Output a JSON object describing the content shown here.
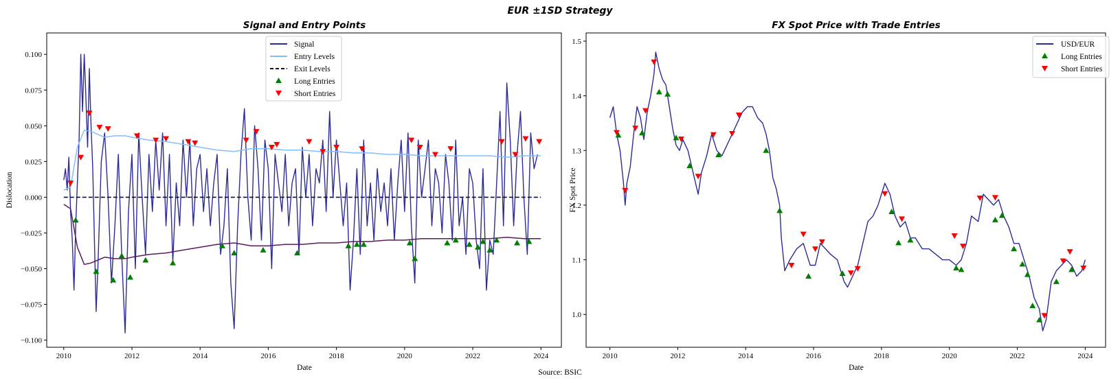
{
  "suptitle": "EUR ±1SD Strategy",
  "source": "Source: BSIC",
  "chart_data": [
    {
      "type": "line",
      "title": "Signal and Entry Points",
      "xlabel": "Date",
      "ylabel": "Dislocation",
      "xlim": [
        2009.5,
        2024.6
      ],
      "ylim": [
        -0.105,
        0.115
      ],
      "x_ticks": [
        2010,
        2012,
        2014,
        2016,
        2018,
        2020,
        2022,
        2024
      ],
      "y_ticks": [
        -0.1,
        -0.075,
        -0.05,
        -0.025,
        0.0,
        0.025,
        0.05,
        0.075,
        0.1
      ],
      "y_tick_labels": [
        "−0.100",
        "−0.075",
        "−0.050",
        "−0.025",
        "0.000",
        "0.025",
        "0.050",
        "0.075",
        "0.100"
      ],
      "grid": false,
      "legend_position": "top-center",
      "legend": [
        "Signal",
        "Entry Levels",
        "Exit Levels",
        "Long Entries",
        "Short Entries"
      ],
      "colors": {
        "signal": "#2b2b96",
        "entry_upper": "#7fbfff",
        "entry_lower": "#5c1a5c",
        "exit": "#0b0b4b",
        "long": "#008000",
        "short": "#ff0000"
      },
      "series": [
        {
          "name": "Signal",
          "x": [
            2010.0,
            2010.05,
            2010.1,
            2010.15,
            2010.2,
            2010.25,
            2010.3,
            2010.35,
            2010.4,
            2010.45,
            2010.5,
            2010.55,
            2010.6,
            2010.65,
            2010.7,
            2010.75,
            2010.8,
            2010.85,
            2010.9,
            2010.95,
            2011.0,
            2011.1,
            2011.2,
            2011.3,
            2011.4,
            2011.5,
            2011.6,
            2011.7,
            2011.8,
            2011.9,
            2012.0,
            2012.1,
            2012.2,
            2012.3,
            2012.4,
            2012.5,
            2012.6,
            2012.7,
            2012.8,
            2012.9,
            2013.0,
            2013.1,
            2013.2,
            2013.3,
            2013.4,
            2013.5,
            2013.6,
            2013.7,
            2013.8,
            2013.9,
            2014.0,
            2014.1,
            2014.2,
            2014.3,
            2014.4,
            2014.5,
            2014.6,
            2014.7,
            2014.8,
            2014.9,
            2015.0,
            2015.1,
            2015.2,
            2015.3,
            2015.4,
            2015.5,
            2015.6,
            2015.7,
            2015.8,
            2015.9,
            2016.0,
            2016.1,
            2016.2,
            2016.3,
            2016.4,
            2016.5,
            2016.6,
            2016.7,
            2016.8,
            2016.9,
            2017.0,
            2017.1,
            2017.2,
            2017.3,
            2017.4,
            2017.5,
            2017.6,
            2017.7,
            2017.8,
            2017.9,
            2018.0,
            2018.1,
            2018.2,
            2018.3,
            2018.4,
            2018.5,
            2018.6,
            2018.7,
            2018.8,
            2018.9,
            2019.0,
            2019.1,
            2019.2,
            2019.3,
            2019.4,
            2019.5,
            2019.6,
            2019.7,
            2019.8,
            2019.9,
            2020.0,
            2020.1,
            2020.2,
            2020.3,
            2020.4,
            2020.5,
            2020.6,
            2020.7,
            2020.8,
            2020.9,
            2021.0,
            2021.1,
            2021.2,
            2021.3,
            2021.4,
            2021.5,
            2021.6,
            2021.7,
            2021.8,
            2021.9,
            2022.0,
            2022.1,
            2022.2,
            2022.3,
            2022.4,
            2022.5,
            2022.6,
            2022.7,
            2022.8,
            2022.9,
            2023.0,
            2023.1,
            2023.2,
            2023.3,
            2023.4,
            2023.5,
            2023.6,
            2023.7,
            2023.8,
            2023.9
          ],
          "values": [
            0.012,
            0.02,
            0.005,
            0.028,
            -0.01,
            -0.03,
            -0.065,
            -0.02,
            0.01,
            0.04,
            0.1,
            0.06,
            0.1,
            0.07,
            0.035,
            0.09,
            0.05,
            0.02,
            -0.03,
            -0.08,
            -0.05,
            0.025,
            0.045,
            0.0,
            -0.06,
            -0.02,
            0.03,
            -0.04,
            -0.095,
            -0.01,
            0.03,
            -0.05,
            0.045,
            0.0,
            -0.04,
            0.03,
            -0.01,
            0.04,
            0.005,
            0.045,
            -0.02,
            0.03,
            -0.045,
            0.01,
            -0.02,
            0.04,
            0.0,
            0.04,
            -0.02,
            0.02,
            0.03,
            -0.01,
            0.02,
            -0.02,
            0.01,
            0.03,
            -0.04,
            -0.02,
            0.02,
            -0.06,
            -0.092,
            -0.02,
            0.03,
            0.062,
            0.0,
            -0.03,
            0.05,
            0.02,
            -0.03,
            0.04,
            0.02,
            -0.05,
            0.03,
            0.01,
            -0.01,
            0.03,
            -0.02,
            0.01,
            0.02,
            -0.04,
            0.035,
            0.0,
            0.03,
            -0.02,
            0.02,
            0.01,
            0.04,
            -0.01,
            0.06,
            0.0,
            0.04,
            0.01,
            -0.02,
            0.01,
            -0.065,
            -0.03,
            0.02,
            -0.04,
            0.04,
            -0.02,
            0.01,
            -0.03,
            0.02,
            -0.01,
            0.01,
            -0.02,
            0.02,
            -0.03,
            0.01,
            0.04,
            -0.01,
            0.045,
            -0.02,
            -0.06,
            0.04,
            0.0,
            0.02,
            0.04,
            -0.02,
            0.02,
            0.01,
            -0.025,
            0.03,
            0.01,
            -0.03,
            0.04,
            -0.02,
            0.0,
            -0.04,
            0.02,
            0.01,
            -0.03,
            -0.05,
            0.02,
            -0.065,
            -0.03,
            -0.04,
            0.01,
            0.06,
            -0.02,
            0.08,
            0.04,
            -0.02,
            0.03,
            0.06,
            0.0,
            -0.04,
            0.045,
            0.02,
            0.03
          ]
        },
        {
          "name": "Entry Levels",
          "x": [
            2010.0,
            2010.2,
            2010.4,
            2010.6,
            2010.8,
            2011.0,
            2011.2,
            2011.5,
            2011.8,
            2012.0,
            2012.5,
            2013.0,
            2013.5,
            2014.0,
            2014.5,
            2015.0,
            2015.5,
            2016.0,
            2016.5,
            2017.0,
            2017.5,
            2018.0,
            2018.5,
            2019.0,
            2019.5,
            2020.0,
            2020.5,
            2021.0,
            2021.5,
            2022.0,
            2022.5,
            2023.0,
            2023.5,
            2024.0
          ],
          "values": [
            0.005,
            0.007,
            0.035,
            0.047,
            0.046,
            0.044,
            0.042,
            0.043,
            0.043,
            0.042,
            0.04,
            0.039,
            0.037,
            0.035,
            0.033,
            0.032,
            0.034,
            0.034,
            0.033,
            0.033,
            0.032,
            0.032,
            0.031,
            0.031,
            0.03,
            0.03,
            0.029,
            0.029,
            0.029,
            0.029,
            0.029,
            0.028,
            0.029,
            0.029
          ]
        },
        {
          "name": "",
          "x": [
            2010.0,
            2010.2,
            2010.4,
            2010.6,
            2010.8,
            2011.0,
            2011.2,
            2011.5,
            2011.8,
            2012.0,
            2012.5,
            2013.0,
            2013.5,
            2014.0,
            2014.5,
            2015.0,
            2015.5,
            2016.0,
            2016.5,
            2017.0,
            2017.5,
            2018.0,
            2018.5,
            2019.0,
            2019.5,
            2020.0,
            2020.5,
            2021.0,
            2021.5,
            2022.0,
            2022.5,
            2023.0,
            2023.5,
            2024.0
          ],
          "values": [
            -0.005,
            -0.008,
            -0.035,
            -0.047,
            -0.046,
            -0.044,
            -0.042,
            -0.043,
            -0.043,
            -0.042,
            -0.04,
            -0.039,
            -0.037,
            -0.035,
            -0.033,
            -0.032,
            -0.034,
            -0.034,
            -0.033,
            -0.033,
            -0.032,
            -0.032,
            -0.031,
            -0.031,
            -0.03,
            -0.03,
            -0.029,
            -0.029,
            -0.029,
            -0.029,
            -0.029,
            -0.028,
            -0.029,
            -0.029
          ]
        },
        {
          "name": "Exit Levels",
          "x": [
            2010.0,
            2024.0
          ],
          "values": [
            0.0,
            0.0
          ]
        }
      ],
      "long_entries": {
        "x": [
          2010.35,
          2010.95,
          2011.45,
          2011.7,
          2011.95,
          2012.4,
          2013.2,
          2014.65,
          2015.0,
          2015.85,
          2016.85,
          2018.35,
          2018.6,
          2018.8,
          2020.15,
          2020.3,
          2021.25,
          2021.5,
          2021.9,
          2022.15,
          2022.3,
          2022.5,
          2022.7,
          2023.3,
          2023.65
        ],
        "values": [
          -0.016,
          -0.052,
          -0.058,
          -0.041,
          -0.056,
          -0.044,
          -0.046,
          -0.034,
          -0.039,
          -0.037,
          -0.039,
          -0.034,
          -0.033,
          -0.033,
          -0.032,
          -0.043,
          -0.032,
          -0.03,
          -0.033,
          -0.035,
          -0.031,
          -0.037,
          -0.03,
          -0.032,
          -0.031
        ]
      },
      "short_entries": {
        "x": [
          2010.2,
          2010.5,
          2010.75,
          2011.05,
          2011.3,
          2012.15,
          2012.7,
          2013.0,
          2013.65,
          2013.85,
          2015.35,
          2015.65,
          2016.1,
          2016.25,
          2017.2,
          2017.6,
          2018.0,
          2018.75,
          2020.2,
          2020.45,
          2020.9,
          2021.35,
          2022.85,
          2023.25,
          2023.55,
          2023.95
        ],
        "values": [
          0.01,
          0.028,
          0.059,
          0.049,
          0.048,
          0.043,
          0.04,
          0.041,
          0.039,
          0.038,
          0.04,
          0.046,
          0.035,
          0.037,
          0.039,
          0.032,
          0.035,
          0.034,
          0.04,
          0.035,
          0.03,
          0.034,
          0.039,
          0.03,
          0.041,
          0.039
        ]
      }
    },
    {
      "type": "line",
      "title": "FX Spot Price with Trade Entries",
      "xlabel": "Date",
      "ylabel": "FX Spot Price",
      "xlim": [
        2009.3,
        2024.6
      ],
      "ylim": [
        0.94,
        1.515
      ],
      "x_ticks": [
        2010,
        2012,
        2014,
        2016,
        2018,
        2020,
        2022,
        2024
      ],
      "y_ticks": [
        1.0,
        1.1,
        1.2,
        1.3,
        1.4,
        1.5
      ],
      "y_tick_labels": [
        "1.0",
        "1.1",
        "1.2",
        "1.3",
        "1.4",
        "1.5"
      ],
      "grid": false,
      "legend_position": "top-right",
      "legend": [
        "USD/EUR",
        "Long Entries",
        "Short Entries"
      ],
      "colors": {
        "price": "#2b2b96",
        "long": "#008000",
        "short": "#ff0000"
      },
      "series": [
        {
          "name": "USD/EUR",
          "x": [
            2010.0,
            2010.1,
            2010.2,
            2010.3,
            2010.4,
            2010.45,
            2010.5,
            2010.6,
            2010.7,
            2010.8,
            2010.9,
            2011.0,
            2011.1,
            2011.2,
            2011.3,
            2011.35,
            2011.45,
            2011.55,
            2011.65,
            2011.75,
            2011.85,
            2011.95,
            2012.05,
            2012.15,
            2012.3,
            2012.45,
            2012.6,
            2012.7,
            2012.85,
            2013.0,
            2013.15,
            2013.3,
            2013.45,
            2013.6,
            2013.75,
            2013.9,
            2014.05,
            2014.2,
            2014.35,
            2014.5,
            2014.6,
            2014.7,
            2014.8,
            2014.9,
            2015.0,
            2015.05,
            2015.15,
            2015.3,
            2015.5,
            2015.7,
            2015.9,
            2016.05,
            2016.2,
            2016.35,
            2016.5,
            2016.7,
            2016.9,
            2017.0,
            2017.15,
            2017.3,
            2017.45,
            2017.6,
            2017.75,
            2017.9,
            2018.1,
            2018.25,
            2018.4,
            2018.55,
            2018.7,
            2018.85,
            2019.0,
            2019.2,
            2019.4,
            2019.6,
            2019.8,
            2020.0,
            2020.2,
            2020.35,
            2020.5,
            2020.65,
            2020.85,
            2021.0,
            2021.15,
            2021.3,
            2021.45,
            2021.6,
            2021.75,
            2021.9,
            2022.05,
            2022.2,
            2022.35,
            2022.5,
            2022.65,
            2022.75,
            2022.85,
            2023.0,
            2023.15,
            2023.3,
            2023.45,
            2023.6,
            2023.75,
            2023.9,
            2024.0
          ],
          "values": [
            1.36,
            1.38,
            1.33,
            1.3,
            1.24,
            1.2,
            1.24,
            1.27,
            1.33,
            1.38,
            1.36,
            1.32,
            1.37,
            1.4,
            1.44,
            1.48,
            1.45,
            1.43,
            1.42,
            1.38,
            1.34,
            1.31,
            1.3,
            1.32,
            1.3,
            1.26,
            1.22,
            1.26,
            1.29,
            1.33,
            1.3,
            1.29,
            1.31,
            1.33,
            1.35,
            1.37,
            1.38,
            1.38,
            1.36,
            1.35,
            1.33,
            1.3,
            1.25,
            1.23,
            1.2,
            1.14,
            1.08,
            1.1,
            1.12,
            1.13,
            1.09,
            1.09,
            1.13,
            1.12,
            1.11,
            1.1,
            1.06,
            1.05,
            1.07,
            1.09,
            1.13,
            1.17,
            1.18,
            1.2,
            1.24,
            1.22,
            1.18,
            1.16,
            1.17,
            1.14,
            1.14,
            1.12,
            1.12,
            1.11,
            1.1,
            1.1,
            1.09,
            1.1,
            1.13,
            1.18,
            1.17,
            1.22,
            1.21,
            1.2,
            1.21,
            1.18,
            1.16,
            1.13,
            1.13,
            1.1,
            1.07,
            1.03,
            1.01,
            0.97,
            0.99,
            1.06,
            1.08,
            1.09,
            1.1,
            1.09,
            1.07,
            1.08,
            1.1
          ]
        }
      ],
      "long_entries": {
        "x": [
          2010.25,
          2010.95,
          2011.45,
          2011.7,
          2011.95,
          2012.35,
          2013.2,
          2014.6,
          2015.0,
          2015.85,
          2016.85,
          2018.3,
          2018.5,
          2018.85,
          2020.2,
          2020.35,
          2021.35,
          2021.55,
          2021.9,
          2022.15,
          2022.3,
          2022.45,
          2022.65,
          2023.15,
          2023.6
        ],
        "values": [
          1.328,
          1.332,
          1.407,
          1.403,
          1.323,
          1.272,
          1.292,
          1.3,
          1.19,
          1.07,
          1.075,
          1.188,
          1.131,
          1.136,
          1.085,
          1.082,
          1.173,
          1.181,
          1.12,
          1.092,
          1.073,
          1.016,
          0.99,
          1.06,
          1.082
        ]
      },
      "short_entries": {
        "x": [
          2010.2,
          2010.45,
          2010.75,
          2011.05,
          2011.3,
          2012.1,
          2012.6,
          2013.05,
          2013.6,
          2013.8,
          2015.35,
          2015.7,
          2016.05,
          2016.25,
          2017.1,
          2017.3,
          2018.1,
          2018.6,
          2020.15,
          2020.4,
          2020.9,
          2021.35,
          2022.8,
          2023.35,
          2023.55,
          2023.95
        ],
        "values": [
          1.333,
          1.227,
          1.341,
          1.373,
          1.462,
          1.321,
          1.253,
          1.329,
          1.331,
          1.365,
          1.09,
          1.147,
          1.12,
          1.133,
          1.076,
          1.084,
          1.221,
          1.175,
          1.144,
          1.125,
          1.213,
          1.214,
          0.998,
          1.098,
          1.115,
          1.085
        ]
      }
    }
  ]
}
